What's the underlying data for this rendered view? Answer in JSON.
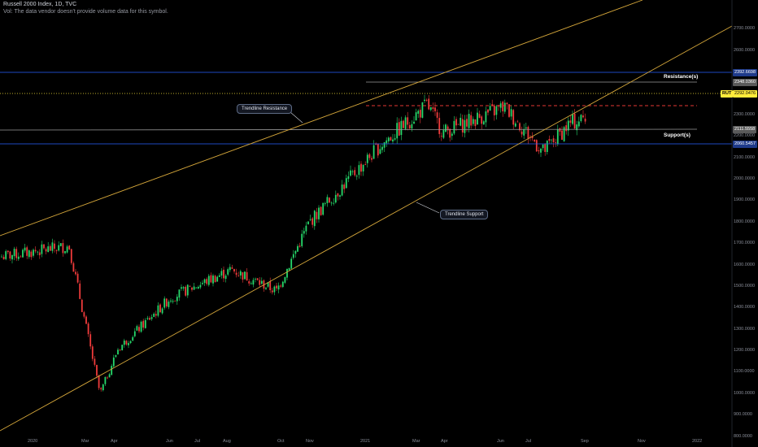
{
  "header": {
    "title": "Russell 2000 Index, 1D, TVC",
    "vol_note": "Vol: The data vendor doesn't provide volume data for this symbol."
  },
  "price_axis": {
    "ticks": [
      "2700.0000",
      "2600.0000",
      "2500.0000",
      "2400.0000",
      "2300.0000",
      "2200.0000",
      "2100.0000",
      "2000.0000",
      "1900.0000",
      "1800.0000",
      "1700.0000",
      "1600.0000",
      "1500.0000",
      "1400.0000",
      "1300.0000",
      "1200.0000",
      "1100.0000",
      "1000.0000",
      "900.0000",
      "800.0000"
    ],
    "tick_values": [
      2700,
      2600,
      2500,
      2400,
      2300,
      2200,
      2100,
      2000,
      1900,
      1800,
      1700,
      1600,
      1500,
      1400,
      1300,
      1200,
      1100,
      1000,
      900,
      800
    ]
  },
  "time_axis": {
    "labels": [
      "2020",
      "Mar",
      "Apr",
      "Jun",
      "Jul",
      "Aug",
      "Oct",
      "Nov",
      "2021",
      "Mar",
      "Apr",
      "Jun",
      "Jul",
      "Sep",
      "Nov",
      "2022"
    ]
  },
  "price_tags": {
    "top_blue": {
      "value": "2392.6698",
      "color": "#1e3a8a"
    },
    "resistance_gray": {
      "value": "2348.0360",
      "color": "#5a5a5a"
    },
    "symbol": {
      "name": "RUT",
      "color": "#ffeb3b"
    },
    "last": {
      "value": "2292.0476",
      "color": "#ffeb3b"
    },
    "support_gray": {
      "value": "2111.5558",
      "color": "#5a5a5a"
    },
    "bottom_blue": {
      "value": "2060.5457",
      "color": "#1e3a8a"
    }
  },
  "annotations": {
    "trendline_resistance": "Trendline Resistance",
    "trendline_support": "Trendline Support",
    "resistance": "Resistance(s)",
    "support": "Support(s)"
  },
  "colors": {
    "up": "#26d96b",
    "down": "#ef3b3b",
    "trendline": "#d4a63a",
    "blue_line": "#2962ff",
    "level_line": "#9a9a9a",
    "mid_dash": "#e53935",
    "last_dot": "#ffeb3b"
  },
  "chart_data": {
    "type": "candlestick",
    "title": "Russell 2000 Index, 1D, TVC",
    "ylim": [
      760,
      2720
    ],
    "key_path": [
      {
        "x": "2020-01",
        "y": 1640
      },
      {
        "x": "2020-02",
        "y": 1690
      },
      {
        "x": "2020-03",
        "y": 1000
      },
      {
        "x": "2020-04",
        "y": 1210
      },
      {
        "x": "2020-06",
        "y": 1450
      },
      {
        "x": "2020-08",
        "y": 1580
      },
      {
        "x": "2020-10",
        "y": 1480
      },
      {
        "x": "2020-11",
        "y": 1800
      },
      {
        "x": "2021-01",
        "y": 2150
      },
      {
        "x": "2021-03",
        "y": 2348
      },
      {
        "x": "2021-04",
        "y": 2220
      },
      {
        "x": "2021-06",
        "y": 2340
      },
      {
        "x": "2021-07",
        "y": 2130
      },
      {
        "x": "2021-08",
        "y": 2260
      },
      {
        "x": "2021-09",
        "y": 2292
      }
    ],
    "levels": {
      "resistance": 2348.036,
      "support": 2111.5558,
      "upper_blue": 2392.6698,
      "lower_blue": 2060.5457,
      "last": 2292.0476
    }
  }
}
